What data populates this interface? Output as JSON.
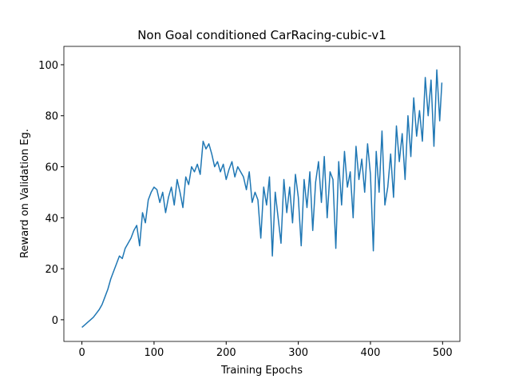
{
  "chart_data": {
    "type": "line",
    "title": "Non Goal conditioned CarRacing-cubic-v1",
    "x_label": "Training Epochs",
    "y_label": "Reward on Validation Eg.",
    "x": [
      0,
      4,
      8,
      12,
      16,
      20,
      24,
      28,
      32,
      36,
      40,
      44,
      48,
      52,
      56,
      60,
      64,
      68,
      72,
      76,
      80,
      84,
      88,
      92,
      96,
      100,
      104,
      108,
      112,
      116,
      120,
      124,
      128,
      132,
      136,
      140,
      144,
      148,
      152,
      156,
      160,
      164,
      168,
      172,
      176,
      180,
      184,
      188,
      192,
      196,
      200,
      204,
      208,
      212,
      216,
      220,
      224,
      228,
      232,
      236,
      240,
      244,
      248,
      252,
      256,
      260,
      264,
      268,
      272,
      276,
      280,
      284,
      288,
      292,
      296,
      300,
      304,
      308,
      312,
      316,
      320,
      324,
      328,
      332,
      336,
      340,
      344,
      348,
      352,
      356,
      360,
      364,
      368,
      372,
      376,
      380,
      384,
      388,
      392,
      396,
      400,
      404,
      408,
      412,
      416,
      420,
      424,
      428,
      432,
      436,
      440,
      444,
      448,
      452,
      456,
      460,
      464,
      468,
      472,
      476,
      480,
      484,
      488,
      492,
      496,
      499
    ],
    "values": [
      -3,
      -2,
      -1,
      0,
      1,
      2.5,
      4,
      6,
      9,
      12,
      16,
      19,
      22,
      25,
      24,
      28,
      30,
      32,
      35,
      37,
      29,
      42,
      38,
      47,
      50,
      52,
      51,
      46,
      50,
      42,
      48,
      52,
      45,
      55,
      50,
      44,
      56,
      53,
      60,
      58,
      61,
      57,
      70,
      67,
      69,
      65,
      60,
      62,
      58,
      61,
      55,
      59,
      62,
      56,
      60,
      58,
      56,
      51,
      58,
      46,
      50,
      47,
      32,
      52,
      45,
      56,
      25,
      50,
      40,
      30,
      55,
      42,
      52,
      38,
      57,
      48,
      29,
      55,
      44,
      58,
      35,
      54,
      62,
      46,
      64,
      40,
      58,
      55,
      28,
      62,
      45,
      66,
      52,
      58,
      40,
      68,
      55,
      63,
      50,
      69,
      57,
      27,
      66,
      50,
      74,
      45,
      52,
      65,
      48,
      76,
      62,
      73,
      55,
      80,
      64,
      87,
      72,
      82,
      70,
      95,
      80,
      94,
      68,
      98,
      78,
      93
    ],
    "color": "#1f77b4",
    "xlim": [
      -25,
      524
    ],
    "ylim": [
      -8.5,
      107.2
    ],
    "xticks": [
      0,
      100,
      200,
      300,
      400,
      500
    ],
    "yticks": [
      0,
      20,
      40,
      60,
      80,
      100
    ]
  }
}
